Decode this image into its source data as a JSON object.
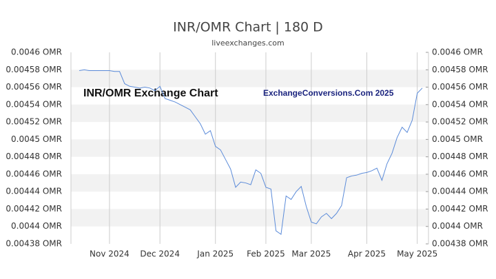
{
  "chart_data": {
    "type": "line",
    "title": "INR/OMR Chart | 180 D",
    "subtitle": "liveexchanges.com",
    "annotations": [
      "INR/OMR Exchange Chart",
      "ExchangeConversions.Com 2025"
    ],
    "categories": [
      null,
      null,
      null,
      null,
      null,
      null,
      "Nov 2024",
      null,
      null,
      null,
      null,
      null,
      null,
      null,
      null,
      null,
      "Dec 2024",
      null,
      null,
      null,
      null,
      null,
      null,
      null,
      null,
      null,
      null,
      "Jan 2025",
      null,
      null,
      null,
      null,
      null,
      null,
      null,
      null,
      null,
      "Feb 2025",
      null,
      null,
      null,
      null,
      null,
      null,
      null,
      null,
      "Mar 2025",
      null,
      null,
      null,
      null,
      null,
      null,
      null,
      null,
      null,
      null,
      "Apr 2025",
      null,
      null,
      null,
      null,
      null,
      null,
      null,
      null,
      null,
      "May 2025",
      null
    ],
    "series": [
      {
        "name": "INR/OMR",
        "color": "#5b8bd9",
        "values": [
          0.004579,
          0.00458,
          0.004579,
          0.004579,
          0.004579,
          0.004579,
          0.004579,
          0.004578,
          0.004578,
          0.004564,
          0.004561,
          0.00456,
          0.004559,
          0.00456,
          0.004559,
          0.004556,
          0.004561,
          0.004547,
          0.004545,
          0.004543,
          0.00454,
          0.004537,
          0.004534,
          0.004526,
          0.004518,
          0.004506,
          0.00451,
          0.004492,
          0.004488,
          0.004477,
          0.004466,
          0.004445,
          0.004451,
          0.00445,
          0.004448,
          0.004465,
          0.004461,
          0.004445,
          0.004443,
          0.004395,
          0.004391,
          0.004435,
          0.004431,
          0.00444,
          0.004446,
          0.004423,
          0.004405,
          0.004403,
          0.004411,
          0.004415,
          0.004409,
          0.004415,
          0.004424,
          0.004456,
          0.004458,
          0.004459,
          0.004461,
          0.004462,
          0.004464,
          0.004467,
          0.004453,
          0.004472,
          0.004484,
          0.004502,
          0.004514,
          0.004508,
          0.004522,
          0.004553,
          0.004559
        ]
      }
    ],
    "ylim": [
      0.00438,
      0.0046
    ],
    "yticks": [
      {
        "value": 0.0046,
        "label": "0.0046 OMR"
      },
      {
        "value": 0.00458,
        "label": "0.00458 OMR"
      },
      {
        "value": 0.00456,
        "label": "0.00456 OMR"
      },
      {
        "value": 0.00454,
        "label": "0.00454 OMR"
      },
      {
        "value": 0.00452,
        "label": "0.00452 OMR"
      },
      {
        "value": 0.0045,
        "label": "0.0045 OMR"
      },
      {
        "value": 0.00448,
        "label": "0.00448 OMR"
      },
      {
        "value": 0.00446,
        "label": "0.00446 OMR"
      },
      {
        "value": 0.00444,
        "label": "0.00444 OMR"
      },
      {
        "value": 0.00442,
        "label": "0.00442 OMR"
      },
      {
        "value": 0.0044,
        "label": "0.0044 OMR"
      },
      {
        "value": 0.00438,
        "label": "0.00438 OMR"
      }
    ],
    "y2lim": [
      0.00438,
      0.0046
    ],
    "y2ticks": [
      {
        "value": 0.0046,
        "label": "0.0046 OMR"
      },
      {
        "value": 0.00458,
        "label": "0.00458 OMR"
      },
      {
        "value": 0.00456,
        "label": "0.00456 OMR"
      },
      {
        "value": 0.00454,
        "label": "0.00454 OMR"
      },
      {
        "value": 0.00452,
        "label": "0.00452 OMR"
      },
      {
        "value": 0.0045,
        "label": "0.0045 OMR"
      },
      {
        "value": 0.00448,
        "label": "0.00448 OMR"
      },
      {
        "value": 0.00446,
        "label": "0.00446 OMR"
      },
      {
        "value": 0.00444,
        "label": "0.00444 OMR"
      },
      {
        "value": 0.00442,
        "label": "0.00442 OMR"
      },
      {
        "value": 0.0044,
        "label": "0.0044 OMR"
      },
      {
        "value": 0.00438,
        "label": "0.00438 OMR"
      }
    ],
    "grid": true
  }
}
